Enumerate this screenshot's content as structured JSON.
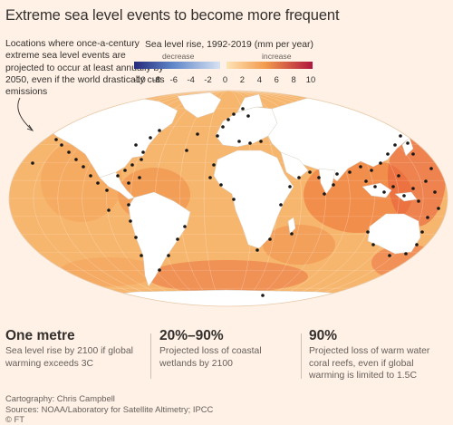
{
  "title": "Extreme sea level events to become more frequent",
  "annotation": "Locations where once-a-century extreme sea level events are projected to occur at least annually by 2050, even if the world drastically cuts emissions",
  "legend": {
    "title": "Sea level rise, 1992-2019 (mm per year)",
    "decrease_label": "decrease",
    "increase_label": "increase",
    "ticks": [
      "-10",
      "-8",
      "-6",
      "-4",
      "-2",
      "0",
      "2",
      "4",
      "6",
      "8",
      "10"
    ],
    "colors": {
      "decrease_dark": "#262a7a",
      "decrease_mid": "#5f86c9",
      "decrease_light": "#d8e2f2",
      "increase_light": "#fde3b5",
      "increase_mid": "#f29b4c",
      "increase_dark": "#b0163e"
    }
  },
  "map": {
    "ocean_color": "#f7b66e",
    "land_color": "#ffffff",
    "dot_color": "#1a1817"
  },
  "stats": [
    {
      "value": "One metre",
      "text": "Sea level rise by 2100 if global warming exceeds 3C"
    },
    {
      "value": "20%–90%",
      "text": "Projected loss of coastal wetlands by 2100"
    },
    {
      "value": "90%",
      "text": "Projected loss of warm water coral reefs, even if global warming is limited to 1.5C"
    }
  ],
  "credits": {
    "cartography": "Cartography: Chris Campbell",
    "sources": "Sources: NOAA/Laboratory for Satellite Altimetry; IPCC",
    "copyright": "© FT"
  }
}
